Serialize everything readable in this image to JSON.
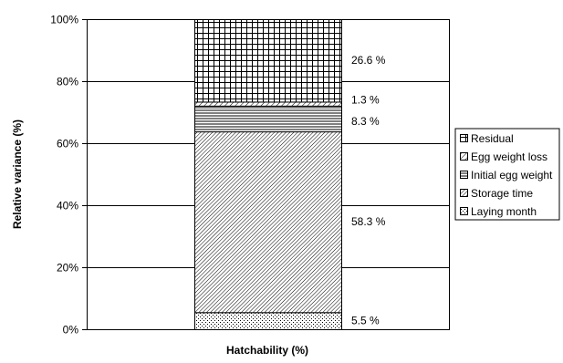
{
  "chart_data": {
    "type": "bar",
    "stacked": true,
    "categories": [
      "Hatchability (%)"
    ],
    "xlabel": "Hatchability (%)",
    "ylabel": "Relative variance (%)",
    "ylim": [
      0,
      100
    ],
    "yticks": [
      "0%",
      "20%",
      "40%",
      "60%",
      "80%",
      "100%"
    ],
    "grid": true,
    "legend_position": "right",
    "series": [
      {
        "name": "Laying month",
        "values": [
          5.5
        ],
        "label": "5.5 %",
        "pattern": "dots"
      },
      {
        "name": "Storage time",
        "values": [
          58.3
        ],
        "label": "58.3 %",
        "pattern": "diagonal-fine"
      },
      {
        "name": "Initial egg weight",
        "values": [
          8.3
        ],
        "label": "8.3 %",
        "pattern": "horizontal-lines"
      },
      {
        "name": "Egg weight loss",
        "values": [
          1.3
        ],
        "label": "1.3 %",
        "pattern": "diagonal-wide"
      },
      {
        "name": "Residual",
        "values": [
          26.6
        ],
        "label": "26.6 %",
        "pattern": "grid"
      }
    ],
    "legend_order": [
      "Residual",
      "Egg weight loss",
      "Initial egg weight",
      "Storage time",
      "Laying month"
    ]
  }
}
